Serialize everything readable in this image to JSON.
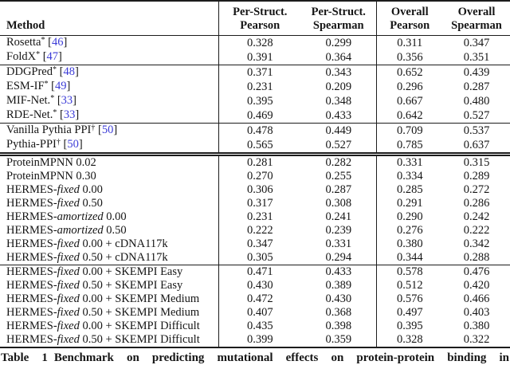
{
  "table": {
    "method_header": "Method",
    "columns": [
      {
        "line1": "Per-Struct.",
        "line2": "Pearson"
      },
      {
        "line1": "Per-Struct.",
        "line2": "Spearman"
      },
      {
        "line1": "Overall",
        "line2": "Pearson"
      },
      {
        "line1": "Overall",
        "line2": "Spearman"
      }
    ],
    "colors": {
      "citation": "#3c3cd7",
      "rule": "#1c1c1c",
      "text": "#151515"
    },
    "sections": [
      {
        "rule_above": "none",
        "rows": [
          {
            "pre": "Rosetta",
            "sup": "*",
            "cite": "46",
            "values": [
              "0.328",
              "0.299",
              "0.311",
              "0.347"
            ]
          },
          {
            "pre": "FoldX",
            "sup": "*",
            "cite": "47",
            "values": [
              "0.391",
              "0.364",
              "0.356",
              "0.351"
            ]
          }
        ]
      },
      {
        "rule_above": "single",
        "rows": [
          {
            "pre": "DDGPred",
            "sup": "*",
            "cite": "48",
            "values": [
              "0.371",
              "0.343",
              "0.652",
              "0.439"
            ]
          },
          {
            "pre": "ESM-IF",
            "sup": "*",
            "cite": "49",
            "values": [
              "0.231",
              "0.209",
              "0.296",
              "0.287"
            ]
          },
          {
            "pre": "MIF-Net.",
            "sup": "*",
            "cite": "33",
            "values": [
              "0.395",
              "0.348",
              "0.667",
              "0.480"
            ]
          },
          {
            "pre": "RDE-Net.",
            "sup": "*",
            "cite": "33",
            "values": [
              "0.469",
              "0.433",
              "0.642",
              "0.527"
            ]
          }
        ]
      },
      {
        "rule_above": "single",
        "rows": [
          {
            "pre": "Vanilla Pythia PPI",
            "sup": "†",
            "cite": "50",
            "values": [
              "0.478",
              "0.449",
              "0.709",
              "0.537"
            ]
          },
          {
            "pre": "Pythia-PPI",
            "sup": "†",
            "cite": "50",
            "values": [
              "0.565",
              "0.527",
              "0.785",
              "0.637"
            ]
          }
        ]
      },
      {
        "rule_above": "double",
        "rows": [
          {
            "pre": "ProteinMPNN 0.02",
            "values": [
              "0.281",
              "0.282",
              "0.331",
              "0.315"
            ]
          },
          {
            "pre": "ProteinMPNN 0.30",
            "values": [
              "0.270",
              "0.255",
              "0.334",
              "0.289"
            ]
          },
          {
            "pre": "HERMES-",
            "it": "fixed",
            "post": " 0.00",
            "values": [
              "0.306",
              "0.287",
              "0.285",
              "0.272"
            ]
          },
          {
            "pre": "HERMES-",
            "it": "fixed",
            "post": " 0.50",
            "values": [
              "0.317",
              "0.308",
              "0.291",
              "0.286"
            ]
          },
          {
            "pre": "HERMES-",
            "it": "amortized",
            "post": " 0.00",
            "values": [
              "0.231",
              "0.241",
              "0.290",
              "0.242"
            ]
          },
          {
            "pre": "HERMES-",
            "it": "amortized",
            "post": " 0.50",
            "values": [
              "0.222",
              "0.239",
              "0.276",
              "0.222"
            ]
          },
          {
            "pre": "HERMES-",
            "it": "fixed",
            "post": " 0.00 + cDNA117k",
            "values": [
              "0.347",
              "0.331",
              "0.380",
              "0.342"
            ]
          },
          {
            "pre": "HERMES-",
            "it": "fixed",
            "post": " 0.50 + cDNA117k",
            "values": [
              "0.305",
              "0.294",
              "0.344",
              "0.288"
            ]
          }
        ]
      },
      {
        "rule_above": "single",
        "rows": [
          {
            "pre": "HERMES-",
            "it": "fixed",
            "post": " 0.00 + SKEMPI Easy",
            "values": [
              "0.471",
              "0.433",
              "0.578",
              "0.476"
            ]
          },
          {
            "pre": "HERMES-",
            "it": "fixed",
            "post": " 0.50 + SKEMPI Easy",
            "values": [
              "0.430",
              "0.389",
              "0.512",
              "0.420"
            ]
          },
          {
            "pre": "HERMES-",
            "it": "fixed",
            "post": " 0.00 + SKEMPI Medium",
            "values": [
              "0.472",
              "0.430",
              "0.576",
              "0.466"
            ]
          },
          {
            "pre": "HERMES-",
            "it": "fixed",
            "post": " 0.50 + SKEMPI Medium",
            "values": [
              "0.407",
              "0.368",
              "0.497",
              "0.403"
            ]
          },
          {
            "pre": "HERMES-",
            "it": "fixed",
            "post": " 0.00 + SKEMPI Difficult",
            "values": [
              "0.435",
              "0.398",
              "0.395",
              "0.380"
            ]
          },
          {
            "pre": "HERMES-",
            "it": "fixed",
            "post": " 0.50 + SKEMPI Difficult",
            "values": [
              "0.399",
              "0.359",
              "0.328",
              "0.322"
            ]
          }
        ]
      }
    ]
  },
  "caption": {
    "label": "Table 1",
    "text": "Benchmark on predicting mutational effects on protein-protein binding in"
  }
}
